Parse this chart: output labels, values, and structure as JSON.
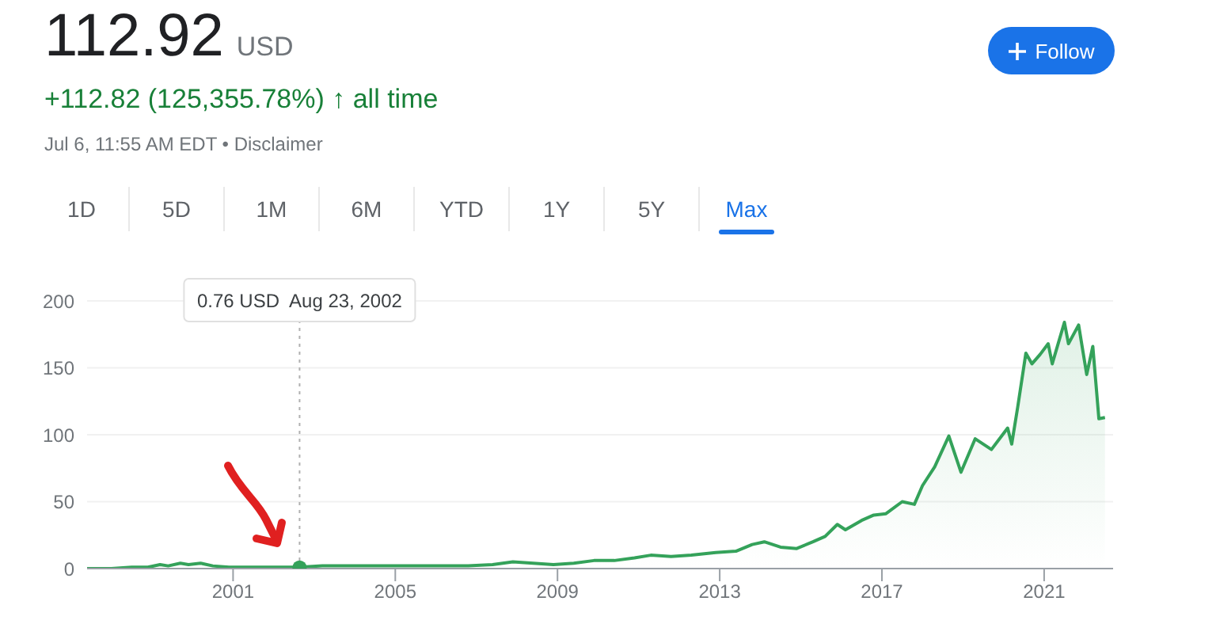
{
  "chart_data": {
    "type": "area",
    "title": "112.92 USD",
    "subtitle": "+112.82 (125,355.78%) ↑ all time",
    "annotations": [
      "Jul 6, 11:55 AM EDT • Disclaimer",
      "Follow",
      "1D",
      "5D",
      "1M",
      "6M",
      "YTD",
      "1Y",
      "5Y",
      "Max"
    ],
    "x": [
      1997.4,
      1998.0,
      1998.5,
      1998.9,
      1999.2,
      1999.4,
      1999.7,
      1999.9,
      2000.2,
      2000.5,
      2000.9,
      2001.3,
      2001.8,
      2002.3,
      2002.64,
      2003.2,
      2003.8,
      2004.3,
      2004.8,
      2005.5,
      2006.2,
      2006.8,
      2007.4,
      2007.9,
      2008.4,
      2008.9,
      2009.4,
      2009.9,
      2010.4,
      2010.9,
      2011.3,
      2011.8,
      2012.3,
      2012.9,
      2013.4,
      2013.8,
      2014.1,
      2014.5,
      2014.9,
      2015.3,
      2015.6,
      2015.9,
      2016.1,
      2016.5,
      2016.8,
      2017.1,
      2017.5,
      2017.8,
      2018.0,
      2018.3,
      2018.65,
      2018.95,
      2019.3,
      2019.7,
      2020.1,
      2020.2,
      2020.35,
      2020.55,
      2020.7,
      2020.9,
      2021.1,
      2021.2,
      2021.5,
      2021.6,
      2021.85,
      2022.05,
      2022.2,
      2022.35,
      2022.5
    ],
    "series": [
      {
        "color": "#34a25a",
        "values": [
          0,
          0,
          1,
          1,
          3,
          2,
          4,
          3,
          4,
          2,
          1,
          1,
          1,
          1,
          1,
          2,
          2,
          2,
          2,
          2,
          2,
          2,
          3,
          5,
          4,
          3,
          4,
          6,
          6,
          8,
          10,
          9,
          10,
          12,
          13,
          18,
          20,
          16,
          15,
          20,
          24,
          33,
          29,
          36,
          40,
          41,
          50,
          48,
          62,
          76,
          99,
          72,
          97,
          89,
          105,
          93,
          121,
          161,
          153,
          160,
          168,
          153,
          184,
          168,
          182,
          145,
          166,
          112,
          112.92
        ]
      },
      {
        "type": "scatter",
        "color": "#34a25a",
        "marker": "circle",
        "x": [
          2002.64
        ],
        "values": [
          0.76
        ]
      }
    ],
    "xlim": [
      1997.4,
      2022.7
    ],
    "xticks": [
      2001,
      2005,
      2009,
      2013,
      2017,
      2021
    ],
    "ylim": [
      0,
      200
    ],
    "yticks": [
      0,
      50,
      100,
      150,
      200
    ],
    "grid": "y",
    "ref_lines": [
      {
        "axis": "x",
        "value": 2002.64,
        "line_style": "dotted",
        "color": "#b0b0b0",
        "label": "0.76 USD  Aug 23, 2002"
      }
    ]
  }
}
